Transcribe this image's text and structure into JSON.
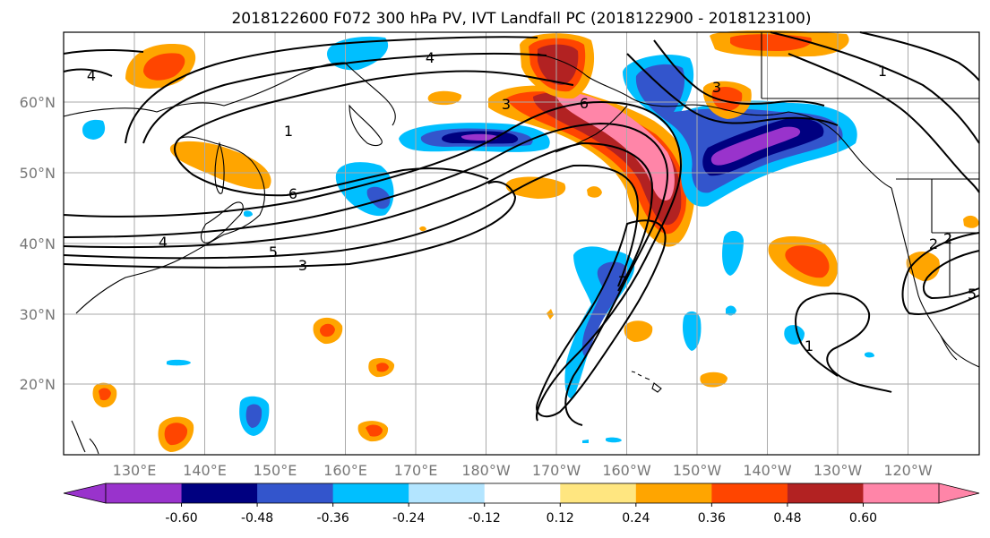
{
  "title": "2018122600 F072 300 hPa PV, IVT Landfall PC (2018122900 - 2018123100)",
  "lat_labels": [
    "60°N",
    "50°N",
    "40°N",
    "30°N",
    "20°N"
  ],
  "lon_labels": [
    "130°E",
    "140°E",
    "150°E",
    "160°E",
    "170°E",
    "180°W",
    "170°W",
    "160°W",
    "150°W",
    "140°W",
    "130°W",
    "120°W"
  ],
  "colorbar": {
    "colors": [
      "#9933cc",
      "#000080",
      "#3355cc",
      "#00bfff",
      "#b3e5ff",
      "#ffffff",
      "#ffe680",
      "#ffa500",
      "#ff4500",
      "#b22222",
      "#ff85a8"
    ],
    "extend_low": "#9933cc",
    "extend_high": "#ff85a8",
    "tick_labels": [
      "-0.60",
      "-0.48",
      "-0.36",
      "-0.24",
      "-0.12",
      "0.12",
      "0.24",
      "0.36",
      "0.48",
      "0.60"
    ]
  },
  "contour_labels": [
    "4",
    "4",
    "3",
    "1",
    "6",
    "4",
    "5",
    "3",
    "6",
    "3",
    "7",
    "1",
    "2",
    "2",
    "5",
    "1"
  ],
  "colors": {
    "neg_strong": "#000080",
    "neg_mid": "#3355cc",
    "neg": "#00bfff",
    "neg_light": "#b3e5ff",
    "neg_extreme": "#9933cc",
    "pos_light": "#ffe680",
    "pos": "#ffa500",
    "pos_mid": "#ff4500",
    "pos_strong": "#b22222",
    "pos_extreme": "#ff85a8"
  }
}
